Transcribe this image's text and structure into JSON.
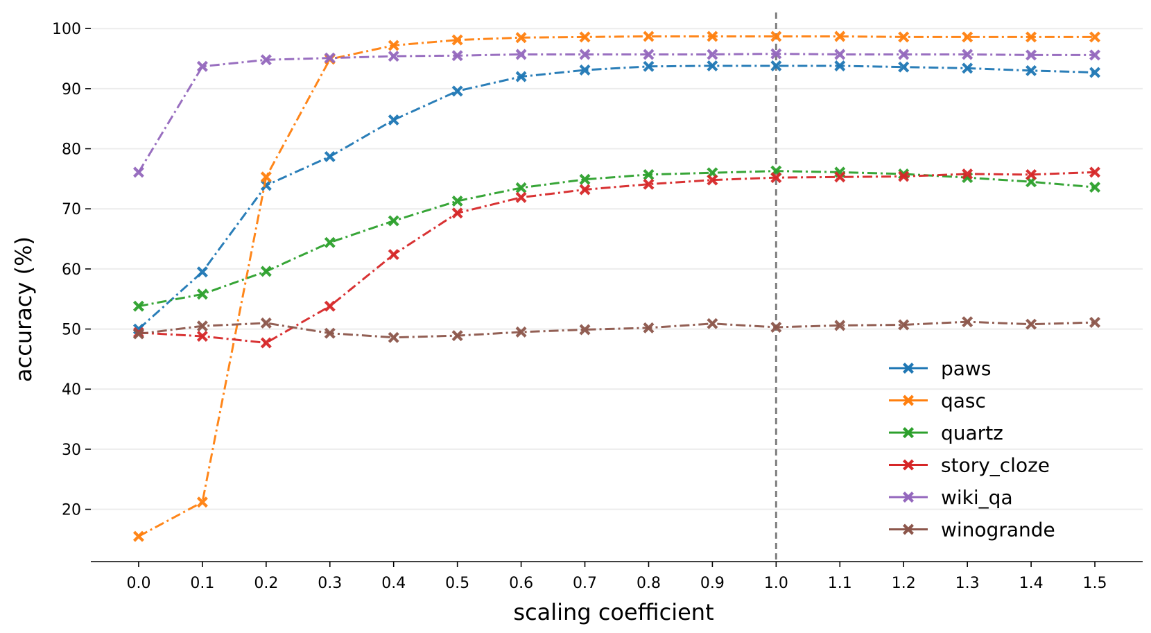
{
  "chart_data": {
    "type": "line",
    "title": "",
    "xlabel": "scaling coefficient",
    "ylabel": "accuracy (%)",
    "x": [
      0.0,
      0.1,
      0.2,
      0.3,
      0.4,
      0.5,
      0.6,
      0.7,
      0.8,
      0.9,
      1.0,
      1.1,
      1.2,
      1.3,
      1.4,
      1.5
    ],
    "x_tick_labels": [
      "0.0",
      "0.1",
      "0.2",
      "0.3",
      "0.4",
      "0.5",
      "0.6",
      "0.7",
      "0.8",
      "0.9",
      "1.0",
      "1.1",
      "1.2",
      "1.3",
      "1.4",
      "1.5"
    ],
    "y_ticks": [
      20,
      30,
      40,
      50,
      60,
      70,
      80,
      90,
      100
    ],
    "y_tick_labels": [
      "20",
      "30",
      "40",
      "50",
      "60",
      "70",
      "80",
      "90",
      "100"
    ],
    "xlim": [
      -0.075,
      1.575
    ],
    "ylim": [
      11.3,
      103.6
    ],
    "grid": "horizontal",
    "legend_position": "lower-right",
    "reference_line": {
      "x": 1.0,
      "style": "dashed",
      "color": "#808080"
    },
    "series": [
      {
        "name": "paws",
        "color": "#1f77b4",
        "values": [
          50.0,
          59.5,
          73.9,
          78.7,
          84.8,
          89.6,
          92.0,
          93.1,
          93.7,
          93.8,
          93.8,
          93.8,
          93.6,
          93.4,
          93.0,
          92.7
        ]
      },
      {
        "name": "qasc",
        "color": "#ff7f0e",
        "values": [
          15.5,
          21.2,
          75.3,
          94.9,
          97.2,
          98.1,
          98.5,
          98.6,
          98.7,
          98.7,
          98.7,
          98.7,
          98.6,
          98.6,
          98.6,
          98.6
        ]
      },
      {
        "name": "quartz",
        "color": "#2ca02c",
        "values": [
          53.8,
          55.8,
          59.6,
          64.4,
          68.0,
          71.3,
          73.5,
          74.9,
          75.7,
          76.0,
          76.3,
          76.1,
          75.8,
          75.2,
          74.5,
          73.6
        ]
      },
      {
        "name": "story_cloze",
        "color": "#d62728",
        "values": [
          49.4,
          48.8,
          47.7,
          53.8,
          62.4,
          69.3,
          71.9,
          73.2,
          74.1,
          74.8,
          75.2,
          75.3,
          75.4,
          75.8,
          75.7,
          76.1
        ]
      },
      {
        "name": "wiki_qa",
        "color": "#9467bd",
        "values": [
          76.1,
          93.7,
          94.8,
          95.1,
          95.4,
          95.5,
          95.7,
          95.7,
          95.7,
          95.7,
          95.8,
          95.7,
          95.7,
          95.7,
          95.6,
          95.6
        ]
      },
      {
        "name": "winogrande",
        "color": "#8c564b",
        "values": [
          49.2,
          50.5,
          51.0,
          49.3,
          48.6,
          48.9,
          49.5,
          49.9,
          50.2,
          50.9,
          50.3,
          50.6,
          50.7,
          51.2,
          50.8,
          51.1
        ]
      }
    ]
  }
}
